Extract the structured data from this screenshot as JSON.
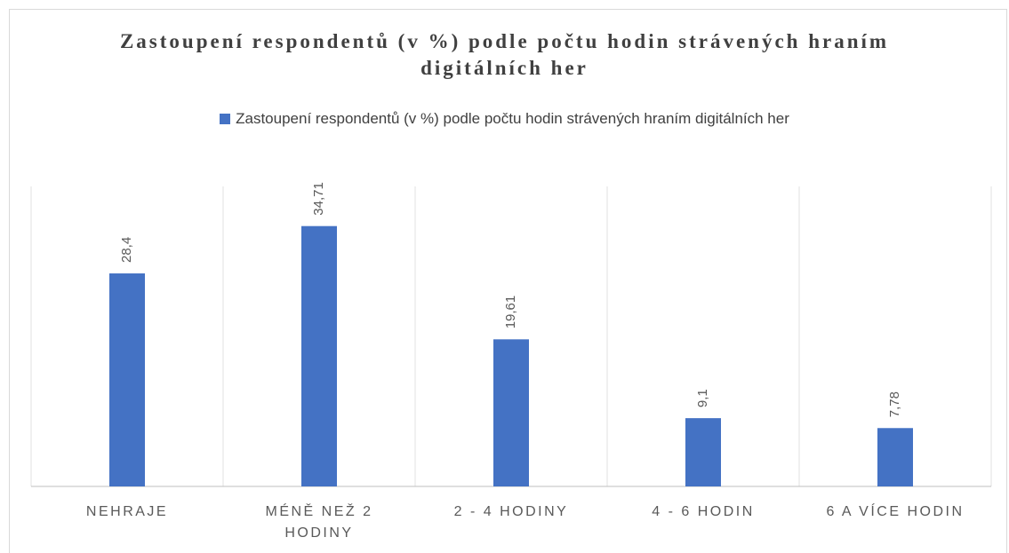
{
  "chart_data": {
    "type": "bar",
    "title": "Zastoupení respondentů (v %) podle počtu hodin strávených hraním digitálních her",
    "categories": [
      "NEHRAJE",
      "MÉNĚ NEŽ 2 HODINY",
      "2 - 4 HODINY",
      "4 - 6 HODIN",
      "6 A VÍCE HODIN"
    ],
    "series": [
      {
        "name": "Zastoupení respondentů (v %) podle počtu hodin strávených hraním digitálních her",
        "color": "#4472c4",
        "values": [
          28.4,
          34.71,
          19.61,
          9.1,
          7.78
        ],
        "value_labels": [
          "28,4",
          "34,71",
          "19,61",
          "9,1",
          "7,78"
        ]
      }
    ],
    "ylim": [
      0,
      40
    ]
  }
}
